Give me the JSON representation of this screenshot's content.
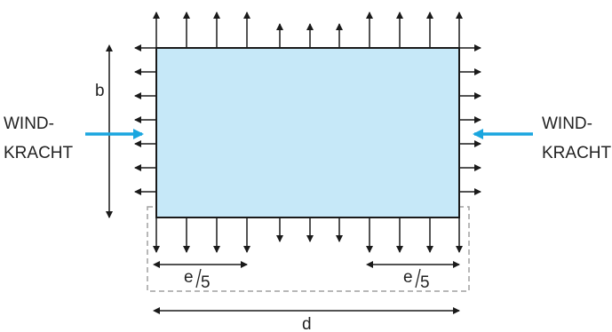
{
  "labels": {
    "wind_left_line1": "WIND-",
    "wind_left_line2": "KRACHT",
    "wind_right_line1": "WIND-",
    "wind_right_line2": "KRACHT",
    "dim_b": "b",
    "dim_d": "d",
    "dim_e5_left_num": "e",
    "dim_e5_left_den": "5",
    "dim_e5_right_num": "e",
    "dim_e5_right_den": "5"
  },
  "colors": {
    "building_fill": "#c6e8f8",
    "building_stroke": "#1a1a1a",
    "wind_arrow": "#1aa6df",
    "force_arrow": "#1a1a1a",
    "dashed_zone": "#a0a0a0"
  }
}
